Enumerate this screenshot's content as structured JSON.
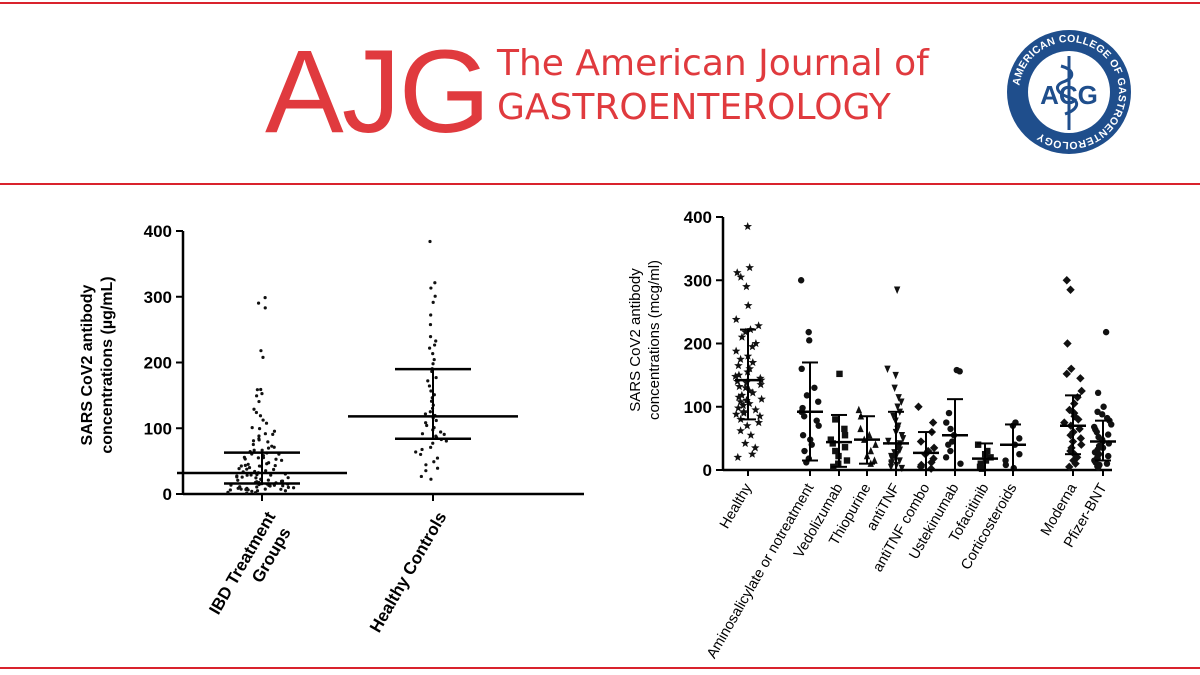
{
  "header": {
    "logo_text": "AJG",
    "journal_title_line1": "The American Journal of",
    "journal_title_line2": "GASTROENTEROLOGY",
    "seal_text": "ACG",
    "seal_ring_text": "AMERICAN COLLEGE OF GASTROENTEROLOGY",
    "accent_color": "#e03a3e",
    "seal_color": "#1f4e8c"
  },
  "chart_data": [
    {
      "type": "scatter",
      "ylabel_line1": "SARS  CoV2 antibody",
      "ylabel_line2": "concentrations (µg/mL)",
      "ylim": [
        0,
        400
      ],
      "yticks": [
        0,
        100,
        200,
        300,
        400
      ],
      "categories": [
        "IBD Treatment Groups",
        "Healthy Controls"
      ],
      "category_label_lines": [
        [
          "IBD Treatment",
          "Groups"
        ],
        [
          "Healthy Controls"
        ]
      ],
      "median": [
        32,
        118
      ],
      "q1": [
        16,
        84
      ],
      "q3": [
        63,
        190
      ],
      "points": [
        [
          300,
          290,
          282,
          218,
          207,
          160,
          158,
          152,
          150,
          140,
          130,
          125,
          118,
          112,
          108,
          100,
          98,
          95,
          92,
          90,
          88,
          85,
          82,
          80,
          78,
          76,
          74,
          72,
          70,
          68,
          66,
          64,
          63,
          62,
          60,
          58,
          57,
          56,
          55,
          54,
          52,
          50,
          48,
          47,
          46,
          45,
          44,
          43,
          42,
          41,
          40,
          38,
          37,
          36,
          35,
          34,
          33,
          32,
          31,
          30,
          30,
          29,
          28,
          27,
          26,
          25,
          25,
          24,
          23,
          22,
          22,
          21,
          20,
          20,
          19,
          18,
          18,
          17,
          16,
          16,
          15,
          15,
          14,
          14,
          13,
          13,
          12,
          12,
          11,
          11,
          10,
          10,
          9,
          9,
          8,
          8,
          7,
          6,
          6,
          5,
          5,
          4,
          4,
          3,
          3,
          2
        ],
        [
          385,
          320,
          312,
          300,
          292,
          272,
          258,
          240,
          232,
          226,
          222,
          212,
          205,
          198,
          192,
          185,
          178,
          172,
          165,
          158,
          152,
          145,
          140,
          135,
          130,
          126,
          122,
          118,
          115,
          112,
          108,
          105,
          102,
          98,
          95,
          92,
          90,
          88,
          85,
          83,
          80,
          76,
          72,
          68,
          64,
          60,
          55,
          50,
          45,
          40,
          35,
          28,
          22
        ]
      ]
    },
    {
      "type": "scatter",
      "ylabel_line1": "SARS  CoV2 antibody",
      "ylabel_line2": "concentrations (mcg/ml)",
      "ylim": [
        0,
        400
      ],
      "yticks": [
        0,
        100,
        200,
        300,
        400
      ],
      "categories": [
        "Healthy",
        "Aminosalicylate or notreatment",
        "Vedolizumab",
        "Thiopurine",
        "antiTNF",
        "antiTNF combo",
        "Ustekinumab",
        "Tofacitinib",
        "Corticosteroids",
        "Moderna",
        "Pfizer-BNT"
      ],
      "markers": [
        "star",
        "circle",
        "square",
        "triangle",
        "triangle-down",
        "diamond",
        "circle",
        "square",
        "circle",
        "diamond",
        "circle"
      ],
      "mean": [
        142,
        92,
        44,
        48,
        42,
        27,
        55,
        18,
        40,
        70,
        45
      ],
      "sd_low": [
        80,
        15,
        5,
        10,
        0,
        0,
        0,
        0,
        0,
        25,
        15
      ],
      "sd_high": [
        222,
        170,
        87,
        85,
        92,
        60,
        112,
        42,
        72,
        118,
        78
      ],
      "points": [
        [
          385,
          320,
          312,
          305,
          290,
          260,
          238,
          228,
          222,
          218,
          210,
          200,
          195,
          188,
          180,
          175,
          170,
          165,
          160,
          155,
          150,
          148,
          145,
          142,
          140,
          138,
          135,
          132,
          130,
          125,
          122,
          118,
          115,
          112,
          110,
          108,
          105,
          102,
          98,
          95,
          92,
          90,
          88,
          85,
          80,
          75,
          70,
          62,
          55,
          42,
          35,
          25,
          20
        ],
        [
          300,
          218,
          205,
          160,
          130,
          118,
          108,
          98,
          92,
          85,
          78,
          70,
          55,
          48,
          40,
          30,
          18,
          12
        ],
        [
          152,
          80,
          65,
          55,
          48,
          42,
          36,
          30,
          22,
          15,
          10,
          5
        ],
        [
          95,
          85,
          65,
          55,
          48,
          40,
          30,
          22,
          15,
          10
        ],
        [
          285,
          160,
          150,
          130,
          115,
          108,
          100,
          92,
          85,
          78,
          70,
          65,
          60,
          55,
          50,
          46,
          42,
          38,
          35,
          32,
          28,
          25,
          22,
          20,
          18,
          15,
          12,
          10,
          8,
          5,
          3
        ],
        [
          100,
          75,
          60,
          45,
          35,
          30,
          25,
          18,
          12,
          8,
          5,
          2
        ],
        [
          158,
          156,
          90,
          75,
          65,
          55,
          45,
          40,
          30,
          20,
          10
        ],
        [
          40,
          30,
          25,
          20,
          15,
          10,
          5,
          2
        ],
        [
          75,
          70,
          50,
          40,
          25,
          15,
          8,
          3
        ],
        [
          300,
          285,
          200,
          160,
          152,
          145,
          125,
          115,
          105,
          95,
          90,
          85,
          80,
          75,
          70,
          65,
          60,
          55,
          50,
          45,
          40,
          35,
          30,
          25,
          20,
          15,
          10,
          5
        ],
        [
          218,
          122,
          100,
          92,
          88,
          82,
          78,
          72,
          68,
          64,
          60,
          56,
          52,
          48,
          45,
          42,
          38,
          35,
          32,
          28,
          25,
          22,
          20,
          18,
          15,
          12,
          10,
          8,
          6,
          4
        ]
      ]
    }
  ]
}
